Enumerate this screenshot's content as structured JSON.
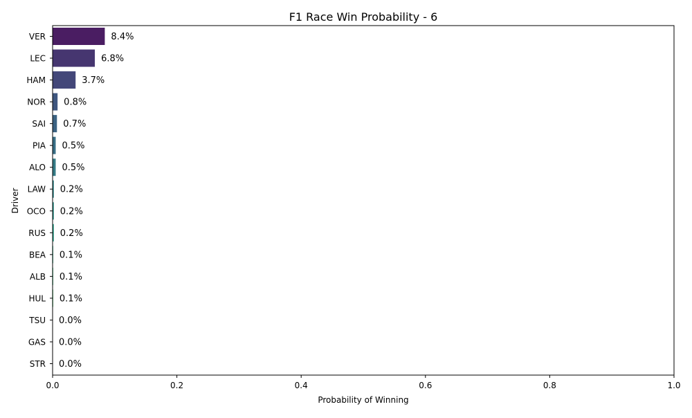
{
  "chart_data": {
    "type": "bar",
    "orientation": "horizontal",
    "title": "F1 Race Win Probability - 6",
    "xlabel": "Probability of Winning",
    "ylabel": "Driver",
    "xlim": [
      0,
      1.0
    ],
    "x_ticks": [
      0.0,
      0.2,
      0.4,
      0.6,
      0.8,
      1.0
    ],
    "x_tick_labels": [
      "0.0",
      "0.2",
      "0.4",
      "0.6",
      "0.8",
      "1.0"
    ],
    "grid": false,
    "categories": [
      "VER",
      "LEC",
      "HAM",
      "NOR",
      "SAI",
      "PIA",
      "ALO",
      "LAW",
      "OCO",
      "RUS",
      "BEA",
      "ALB",
      "HUL",
      "TSU",
      "GAS",
      "STR"
    ],
    "values": [
      0.084,
      0.068,
      0.037,
      0.008,
      0.007,
      0.005,
      0.005,
      0.002,
      0.002,
      0.002,
      0.001,
      0.001,
      0.001,
      0.0,
      0.0,
      0.0
    ],
    "data_labels": [
      "8.4%",
      "6.8%",
      "3.7%",
      "0.8%",
      "0.7%",
      "0.5%",
      "0.5%",
      "0.2%",
      "0.2%",
      "0.2%",
      "0.1%",
      "0.1%",
      "0.1%",
      "0.0%",
      "0.0%",
      "0.0%"
    ],
    "bar_colors": [
      "#4a1d62",
      "#463670",
      "#434779",
      "#3f567f",
      "#3b6282",
      "#386e86",
      "#357b86",
      "#31878a",
      "#2d938a",
      "#29a088",
      "#2fab84",
      "#3db87e",
      "#54c374",
      "#72cc67",
      "#95d655",
      "#bfe140"
    ]
  }
}
